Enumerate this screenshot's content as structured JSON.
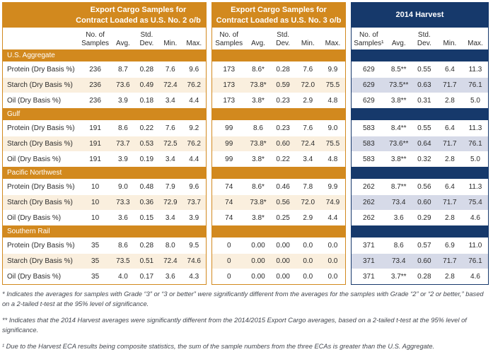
{
  "table1": {
    "title": "Export Cargo Samples for\nContract Loaded as U.S. No. 2 o/b"
  },
  "table2": {
    "title": "Export Cargo Samples for\nContract Loaded as U.S. No. 3 o/b"
  },
  "table3": {
    "title": "2014 Harvest"
  },
  "columns": [
    "No. of\nSamples",
    "Avg.",
    "Std.\nDev.",
    "Min.",
    "Max."
  ],
  "columns_harvest": [
    "No. of\nSamples¹",
    "Avg.",
    "Std.\nDev.",
    "Min.",
    "Max."
  ],
  "colors": {
    "gold": "#D2891E",
    "navy": "#16396B",
    "cream_row": "#FAEFDE",
    "periwinkle_row": "#D6DAE8"
  },
  "sections": [
    {
      "name": "U.S. Aggregate",
      "rows": [
        {
          "label": "Protein (Dry Basis %)",
          "no2": [
            "236",
            "8.7",
            "0.28",
            "7.6",
            "9.6"
          ],
          "no3": [
            "173",
            "8.6*",
            "0.28",
            "7.6",
            "9.9"
          ],
          "harvest": [
            "629",
            "8.5**",
            "0.55",
            "6.4",
            "11.3"
          ]
        },
        {
          "label": "Starch (Dry Basis %)",
          "no2": [
            "236",
            "73.6",
            "0.49",
            "72.4",
            "76.2"
          ],
          "no3": [
            "173",
            "73.8*",
            "0.59",
            "72.0",
            "75.5"
          ],
          "harvest": [
            "629",
            "73.5**",
            "0.63",
            "71.7",
            "76.1"
          ]
        },
        {
          "label": "Oil (Dry Basis %)",
          "no2": [
            "236",
            "3.9",
            "0.18",
            "3.4",
            "4.4"
          ],
          "no3": [
            "173",
            "3.8*",
            "0.23",
            "2.9",
            "4.8"
          ],
          "harvest": [
            "629",
            "3.8**",
            "0.31",
            "2.8",
            "5.0"
          ]
        }
      ]
    },
    {
      "name": "Gulf",
      "rows": [
        {
          "label": "Protein (Dry Basis %)",
          "no2": [
            "191",
            "8.6",
            "0.22",
            "7.6",
            "9.2"
          ],
          "no3": [
            "99",
            "8.6",
            "0.23",
            "7.6",
            "9.0"
          ],
          "harvest": [
            "583",
            "8.4**",
            "0.55",
            "6.4",
            "11.3"
          ]
        },
        {
          "label": "Starch (Dry Basis %)",
          "no2": [
            "191",
            "73.7",
            "0.53",
            "72.5",
            "76.2"
          ],
          "no3": [
            "99",
            "73.8*",
            "0.60",
            "72.4",
            "75.5"
          ],
          "harvest": [
            "583",
            "73.6**",
            "0.64",
            "71.7",
            "76.1"
          ]
        },
        {
          "label": "Oil (Dry Basis %)",
          "no2": [
            "191",
            "3.9",
            "0.19",
            "3.4",
            "4.4"
          ],
          "no3": [
            "99",
            "3.8*",
            "0.22",
            "3.4",
            "4.8"
          ],
          "harvest": [
            "583",
            "3.8**",
            "0.32",
            "2.8",
            "5.0"
          ]
        }
      ]
    },
    {
      "name": "Pacific Northwest",
      "rows": [
        {
          "label": "Protein (Dry Basis %)",
          "no2": [
            "10",
            "9.0",
            "0.48",
            "7.9",
            "9.6"
          ],
          "no3": [
            "74",
            "8.6*",
            "0.46",
            "7.8",
            "9.9"
          ],
          "harvest": [
            "262",
            "8.7**",
            "0.56",
            "6.4",
            "11.3"
          ]
        },
        {
          "label": "Starch (Dry Basis %)",
          "no2": [
            "10",
            "73.3",
            "0.36",
            "72.9",
            "73.7"
          ],
          "no3": [
            "74",
            "73.8*",
            "0.56",
            "72.0",
            "74.9"
          ],
          "harvest": [
            "262",
            "73.4",
            "0.60",
            "71.7",
            "75.4"
          ]
        },
        {
          "label": "Oil (Dry Basis %)",
          "no2": [
            "10",
            "3.6",
            "0.15",
            "3.4",
            "3.9"
          ],
          "no3": [
            "74",
            "3.8*",
            "0.25",
            "2.9",
            "4.4"
          ],
          "harvest": [
            "262",
            "3.6",
            "0.29",
            "2.8",
            "4.6"
          ]
        }
      ]
    },
    {
      "name": "Southern Rail",
      "rows": [
        {
          "label": "Protein (Dry Basis %)",
          "no2": [
            "35",
            "8.6",
            "0.28",
            "8.0",
            "9.5"
          ],
          "no3": [
            "0",
            "0.00",
            "0.00",
            "0.0",
            "0.0"
          ],
          "harvest": [
            "371",
            "8.6",
            "0.57",
            "6.9",
            "11.0"
          ]
        },
        {
          "label": "Starch (Dry Basis %)",
          "no2": [
            "35",
            "73.5",
            "0.51",
            "72.4",
            "74.6"
          ],
          "no3": [
            "0",
            "0.00",
            "0.00",
            "0.0",
            "0.0"
          ],
          "harvest": [
            "371",
            "73.4",
            "0.60",
            "71.7",
            "76.1"
          ]
        },
        {
          "label": "Oil (Dry Basis %)",
          "no2": [
            "35",
            "4.0",
            "0.17",
            "3.6",
            "4.3"
          ],
          "no3": [
            "0",
            "0.00",
            "0.00",
            "0.0",
            "0.0"
          ],
          "harvest": [
            "371",
            "3.7**",
            "0.28",
            "2.8",
            "4.6"
          ]
        }
      ]
    }
  ],
  "footnotes": [
    "* Indicates the averages for samples with Grade “3” or “3 or better” were significantly different from the averages for the samples with Grade “2” or “2 or better,” based on a 2-tailed t-test at the 95% level of significance.",
    "** Indicates that the 2014 Harvest averages were significantly different from the 2014/2015 Export Cargo averages, based on a 2-tailed t-test at the 95% level of significance.",
    "¹ Due to the Harvest ECA results being composite statistics, the sum of the sample numbers from the three ECAs is greater than the U.S. Aggregate."
  ]
}
